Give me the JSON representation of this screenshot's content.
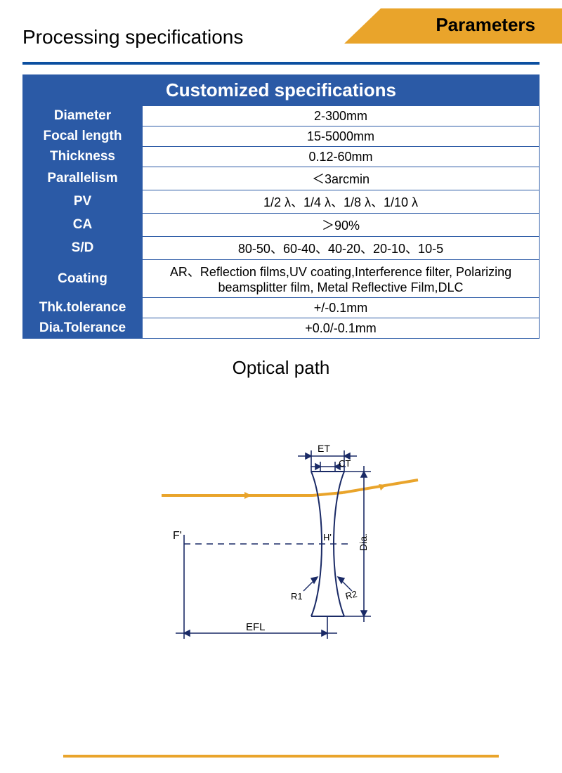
{
  "colors": {
    "accent_orange": "#e9a42b",
    "accent_blue": "#2b5aa6",
    "rule_blue": "#0b4fa0",
    "diagram_line": "#1a2a66",
    "diagram_beam": "#e9a42b",
    "text": "#000000",
    "bg": "#ffffff"
  },
  "header": {
    "section_title": "Processing specifications",
    "tab_label": "Parameters"
  },
  "table": {
    "header": "Customized specifications",
    "rows": [
      {
        "label": "Diameter",
        "value": "2-300mm"
      },
      {
        "label": "Focal length",
        "value": "15-5000mm"
      },
      {
        "label": "Thickness",
        "value": "0.12-60mm"
      },
      {
        "label": "Parallelism",
        "value": "＜3arcmin"
      },
      {
        "label": "PV",
        "value": "1/2 λ、1/4 λ、1/8 λ、1/10 λ"
      },
      {
        "label": "CA",
        "value": "＞90%"
      },
      {
        "label": "S/D",
        "value": "80-50、60-40、40-20、20-10、10-5"
      },
      {
        "label": "Coating",
        "value": "AR、Reflection films,UV coating,Interference filter, Polarizing beamsplitter film, Metal Reflective Film,DLC"
      },
      {
        "label": "Thk.tolerance",
        "value": "+/-0.1mm"
      },
      {
        "label": "Dia.Tolerance",
        "value": "+0.0/-0.1mm"
      }
    ]
  },
  "optical": {
    "title": "Optical path",
    "labels": {
      "ET": "ET",
      "CT": "CT",
      "F": "F'",
      "H": "H'",
      "Dia": "Dia.",
      "R1": "R1",
      "R2": "R2",
      "EFL": "EFL"
    }
  }
}
